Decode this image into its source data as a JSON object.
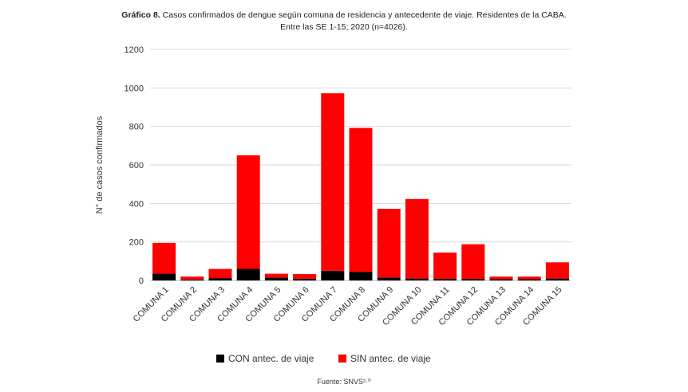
{
  "header": {
    "title_lead": "Gráfico 8.",
    "title_rest": "Casos confirmados de dengue según comuna de residencia y antecedente de viaje. Residentes de la CABA.",
    "title_line2": "Entre las SE 1-15; 2020 (n=4026)."
  },
  "footer": {
    "source": "Fuente: SNVS²·⁰"
  },
  "colors": {
    "con": "#000000",
    "sin": "#ff0000",
    "grid": "#d9d9d9",
    "axis": "#bfbfbf"
  },
  "chart_data": {
    "type": "bar",
    "stacked": true,
    "title": "Casos confirmados de dengue según comuna de residencia y antecedente de viaje. Residentes de la CABA. Entre las SE 1-15; 2020 (n=4026).",
    "xlabel": "",
    "ylabel": "N° de casos confirmados",
    "ylim": [
      0,
      1200
    ],
    "yticks": [
      0,
      200,
      400,
      600,
      800,
      1000,
      1200
    ],
    "categories": [
      "COMUNA 1",
      "COMUNA 2",
      "COMUNA 3",
      "COMUNA 4",
      "COMUNA 5",
      "COMUNA 6",
      "COMUNA 7",
      "COMUNA 8",
      "COMUNA 9",
      "COMUNA 10",
      "COMUNA 11",
      "COMUNA 12",
      "COMUNA 13",
      "COMUNA 14",
      "COMUNA 15"
    ],
    "series": [
      {
        "name": "CON antec. de viaje",
        "color": "#000000",
        "values": [
          35,
          5,
          12,
          60,
          15,
          8,
          50,
          45,
          15,
          10,
          8,
          8,
          6,
          6,
          10
        ]
      },
      {
        "name": "SIN antec. de viaje",
        "color": "#ff0000",
        "values": [
          160,
          15,
          48,
          590,
          20,
          25,
          922,
          747,
          357,
          413,
          137,
          180,
          14,
          14,
          84
        ]
      }
    ],
    "legend": "bottom",
    "grid": true
  }
}
